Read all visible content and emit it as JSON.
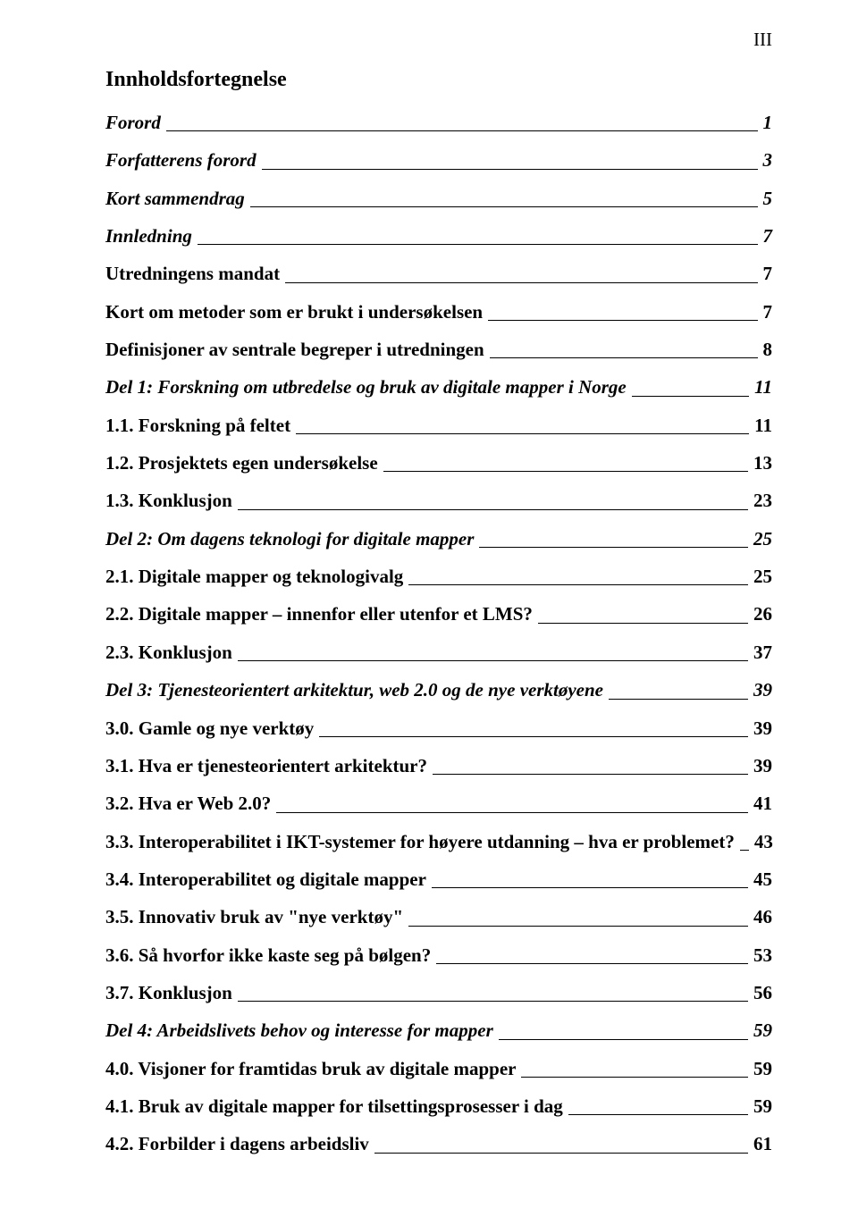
{
  "pageNumber": "III",
  "title": "Innholdsfortegnelse",
  "entries": [
    {
      "label": "Forord",
      "page": "1",
      "italic": true,
      "bold": true
    },
    {
      "label": "Forfatterens forord",
      "page": "3",
      "italic": true,
      "bold": true
    },
    {
      "label": "Kort sammendrag",
      "page": "5",
      "italic": true,
      "bold": true
    },
    {
      "label": "Innledning",
      "page": "7",
      "italic": true,
      "bold": true
    },
    {
      "label": "Utredningens mandat",
      "page": "7",
      "italic": false,
      "bold": true
    },
    {
      "label": "Kort om metoder som er brukt i undersøkelsen",
      "page": "7",
      "italic": false,
      "bold": true
    },
    {
      "label": "Definisjoner av sentrale begreper i utredningen",
      "page": "8",
      "italic": false,
      "bold": true
    },
    {
      "label": "Del 1: Forskning om utbredelse og bruk av digitale mapper i Norge",
      "page": "11",
      "italic": true,
      "bold": true
    },
    {
      "label": "1.1. Forskning på feltet",
      "page": "11",
      "italic": false,
      "bold": true
    },
    {
      "label": "1.2. Prosjektets egen undersøkelse",
      "page": "13",
      "italic": false,
      "bold": true
    },
    {
      "label": "1.3. Konklusjon",
      "page": "23",
      "italic": false,
      "bold": true
    },
    {
      "label": "Del 2: Om dagens teknologi for digitale mapper",
      "page": "25",
      "italic": true,
      "bold": true
    },
    {
      "label": "2.1. Digitale mapper og teknologivalg",
      "page": "25",
      "italic": false,
      "bold": true
    },
    {
      "label": "2.2. Digitale mapper – innenfor eller utenfor et LMS?",
      "page": "26",
      "italic": false,
      "bold": true
    },
    {
      "label": "2.3. Konklusjon",
      "page": "37",
      "italic": false,
      "bold": true
    },
    {
      "label": "Del 3: Tjenesteorientert arkitektur, web 2.0 og de nye verktøyene",
      "page": "39",
      "italic": true,
      "bold": true
    },
    {
      "label": "3.0. Gamle og nye verktøy",
      "page": "39",
      "italic": false,
      "bold": true
    },
    {
      "label": "3.1. Hva er tjenesteorientert arkitektur?",
      "page": "39",
      "italic": false,
      "bold": true
    },
    {
      "label": "3.2. Hva er Web 2.0?",
      "page": "41",
      "italic": false,
      "bold": true
    },
    {
      "label": "3.3. Interoperabilitet i IKT-systemer for høyere utdanning – hva er problemet?",
      "page": "43",
      "italic": false,
      "bold": true
    },
    {
      "label": "3.4. Interoperabilitet og digitale mapper",
      "page": "45",
      "italic": false,
      "bold": true
    },
    {
      "label": "3.5. Innovativ bruk av \"nye verktøy\"",
      "page": "46",
      "italic": false,
      "bold": true
    },
    {
      "label": "3.6. Så hvorfor ikke kaste seg på bølgen?",
      "page": "53",
      "italic": false,
      "bold": true
    },
    {
      "label": "3.7. Konklusjon",
      "page": "56",
      "italic": false,
      "bold": true
    },
    {
      "label": "Del 4: Arbeidslivets behov og interesse for mapper",
      "page": "59",
      "italic": true,
      "bold": true
    },
    {
      "label": "4.0. Visjoner for framtidas bruk av digitale mapper",
      "page": "59",
      "italic": false,
      "bold": true
    },
    {
      "label": "4.1. Bruk av digitale mapper for tilsettingsprosesser i dag",
      "page": "59",
      "italic": false,
      "bold": true
    },
    {
      "label": "4.2. Forbilder i dagens arbeidsliv",
      "page": "61",
      "italic": false,
      "bold": true
    }
  ]
}
